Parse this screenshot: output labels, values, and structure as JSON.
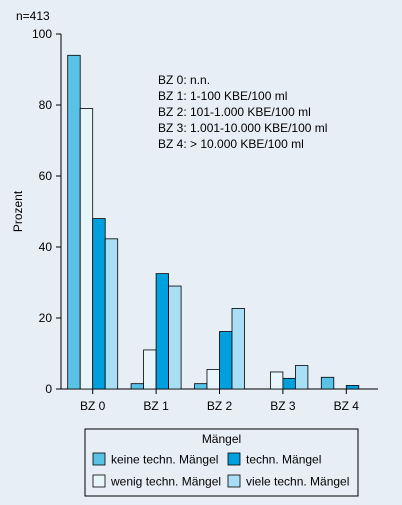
{
  "note": "n=413",
  "chart_data": {
    "type": "bar",
    "categories": [
      "BZ 0",
      "BZ 1",
      "BZ 2",
      "BZ 3",
      "BZ 4"
    ],
    "ylabel": "Prozent",
    "ylim": [
      0,
      100
    ],
    "yticks": [
      0,
      20,
      40,
      60,
      80,
      100
    ],
    "series": [
      {
        "name": "keine techn. Mängel",
        "color": "#5bc2e7",
        "values": [
          94,
          1.5,
          1.5,
          0,
          3.3
        ]
      },
      {
        "name": "wenig techn. Mängel",
        "color": "#e8f6fc",
        "values": [
          79,
          11,
          5.5,
          4.8,
          0
        ]
      },
      {
        "name": "techn. Mängel",
        "color": "#009fde",
        "values": [
          48,
          32.5,
          16.2,
          3,
          1
        ]
      },
      {
        "name": "viele techn. Mängel",
        "color": "#a9dff4",
        "values": [
          42.3,
          29,
          22.7,
          6.6,
          0
        ]
      }
    ],
    "annotation_lines": [
      "BZ 0:  n.n.",
      "BZ 1: 1-100 KBE/100 ml",
      "BZ 2: 101-1.000 KBE/100 ml",
      "BZ 3: 1.001-10.000 KBE/100 ml",
      "BZ 4: > 10.000 KBE/100 ml"
    ],
    "legend": {
      "title": "Mängel",
      "placement": "bottom",
      "order": [
        "keine techn. Mängel",
        "techn. Mängel",
        "wenig techn. Mängel",
        "viele techn. Mängel"
      ]
    }
  }
}
